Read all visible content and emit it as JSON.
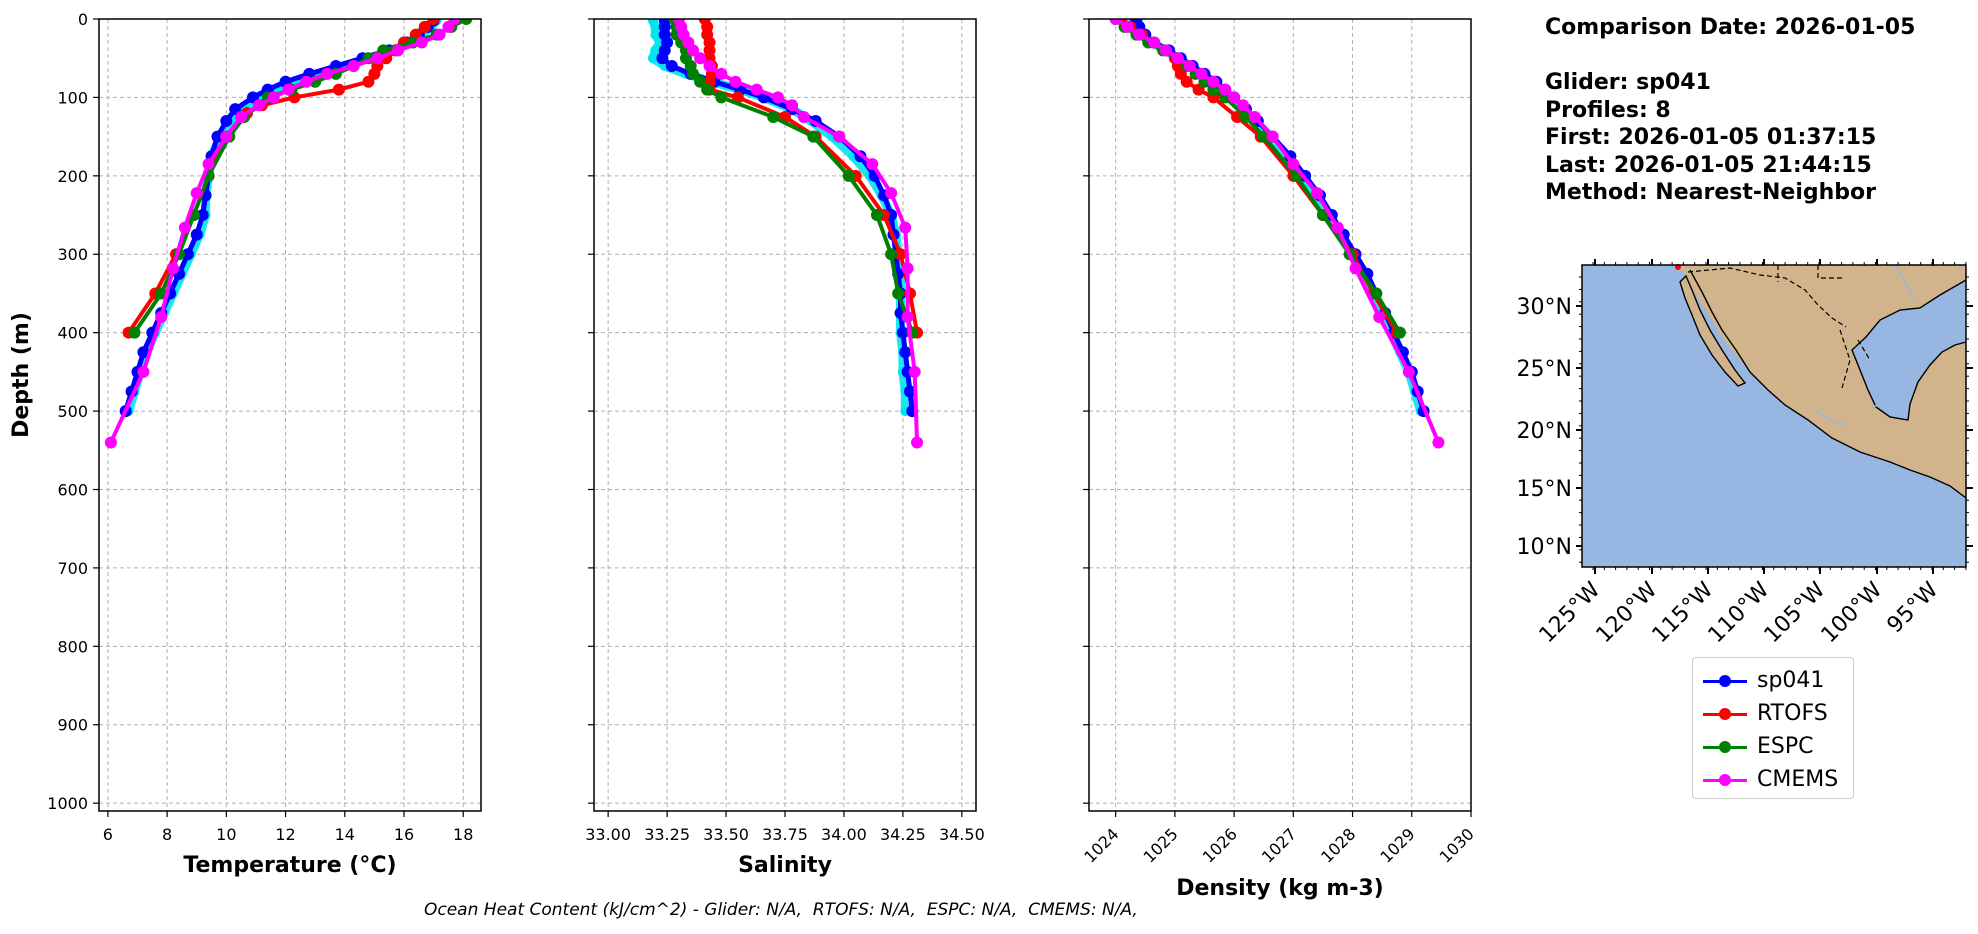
{
  "chart_data": [
    {
      "type": "line",
      "panel": "temperature",
      "xlabel": "Temperature (°C)",
      "ylabel": "Depth (m)",
      "xlim": [
        5.7,
        18.6
      ],
      "ylim": [
        1010,
        0
      ],
      "xticks": [
        6,
        8,
        10,
        12,
        14,
        16,
        18
      ],
      "yticks": [
        0,
        100,
        200,
        300,
        400,
        500,
        600,
        700,
        800,
        900,
        1000
      ],
      "grid": true,
      "series": [
        {
          "name": "sp041 (all)",
          "color": "#00e5ee",
          "depth": [
            2,
            10,
            20,
            30,
            40,
            50,
            60,
            70,
            80,
            90,
            100,
            115,
            130,
            150,
            175,
            200,
            225,
            250,
            275,
            300,
            325,
            350,
            375,
            400,
            425,
            450,
            475,
            500
          ],
          "values": [
            17.1,
            16.9,
            16.6,
            16.2,
            15.6,
            14.8,
            14.0,
            13.2,
            12.4,
            11.8,
            11.3,
            10.6,
            10.2,
            9.8,
            9.5,
            9.4,
            9.3,
            9.3,
            9.1,
            8.8,
            8.5,
            8.2,
            7.9,
            7.6,
            7.3,
            7.1,
            6.9,
            6.7
          ]
        },
        {
          "name": "sp041",
          "color": "#0000ff",
          "depth": [
            2,
            10,
            20,
            30,
            40,
            50,
            60,
            70,
            80,
            90,
            100,
            115,
            130,
            150,
            175,
            200,
            225,
            250,
            275,
            300,
            325,
            350,
            375,
            400,
            425,
            450,
            475,
            500
          ],
          "values": [
            17.0,
            16.8,
            16.5,
            16.1,
            15.5,
            14.6,
            13.7,
            12.8,
            12.0,
            11.4,
            10.9,
            10.3,
            10.0,
            9.7,
            9.5,
            9.4,
            9.3,
            9.2,
            9.0,
            8.7,
            8.4,
            8.1,
            7.8,
            7.5,
            7.2,
            7.0,
            6.8,
            6.6
          ]
        },
        {
          "name": "RTOFS",
          "color": "#ff0000",
          "depth": [
            0,
            10,
            20,
            30,
            40,
            50,
            60,
            70,
            80,
            90,
            100,
            110,
            120,
            150,
            200,
            250,
            300,
            350,
            400
          ],
          "values": [
            17.0,
            16.7,
            16.4,
            16.0,
            15.7,
            15.4,
            15.1,
            15.0,
            14.8,
            13.8,
            12.3,
            11.2,
            10.7,
            10.0,
            9.4,
            8.9,
            8.3,
            7.6,
            6.7
          ]
        },
        {
          "name": "ESPC",
          "color": "#008000",
          "depth": [
            0,
            10,
            20,
            30,
            40,
            50,
            60,
            70,
            80,
            90,
            100,
            125,
            150,
            200,
            250,
            300,
            350,
            400
          ],
          "values": [
            18.1,
            17.6,
            17.1,
            16.3,
            15.3,
            14.8,
            14.3,
            13.7,
            13.0,
            12.2,
            11.4,
            10.6,
            10.1,
            9.4,
            8.9,
            8.4,
            7.8,
            6.9
          ]
        },
        {
          "name": "CMEMS",
          "color": "#ff00ff",
          "depth": [
            0,
            10,
            20,
            30,
            40,
            50,
            60,
            70,
            80,
            90,
            100,
            110,
            125,
            150,
            185,
            222,
            266,
            318,
            380,
            450,
            540
          ],
          "values": [
            17.7,
            17.5,
            17.2,
            16.6,
            15.8,
            15.1,
            14.3,
            13.4,
            12.7,
            12.1,
            11.6,
            11.1,
            10.5,
            10.0,
            9.4,
            9.0,
            8.6,
            8.2,
            7.8,
            7.2,
            6.1
          ]
        }
      ]
    },
    {
      "type": "line",
      "panel": "salinity",
      "xlabel": "Salinity",
      "ylim": [
        1010,
        0
      ],
      "xlim": [
        32.94,
        34.56
      ],
      "xticks": [
        "33.00",
        "33.25",
        "33.50",
        "33.75",
        "34.00",
        "34.25",
        "34.50"
      ],
      "grid": true,
      "series": [
        {
          "name": "sp041 (all)",
          "color": "#00e5ee",
          "depth": [
            2,
            10,
            20,
            30,
            40,
            50,
            60,
            70,
            80,
            90,
            100,
            115,
            130,
            150,
            175,
            200,
            225,
            250,
            275,
            300,
            325,
            350,
            375,
            400,
            425,
            450,
            475,
            500
          ],
          "values": [
            33.19,
            33.2,
            33.2,
            33.22,
            33.2,
            33.19,
            33.24,
            33.33,
            33.44,
            33.56,
            33.66,
            33.78,
            33.86,
            33.95,
            34.04,
            34.11,
            34.16,
            34.2,
            34.22,
            34.23,
            34.24,
            34.24,
            34.24,
            34.24,
            34.25,
            34.25,
            34.26,
            34.26
          ]
        },
        {
          "name": "sp041",
          "color": "#0000ff",
          "depth": [
            2,
            10,
            20,
            30,
            40,
            50,
            60,
            70,
            80,
            90,
            100,
            115,
            130,
            150,
            175,
            200,
            225,
            250,
            275,
            300,
            325,
            350,
            375,
            400,
            425,
            450,
            475,
            500
          ],
          "values": [
            33.24,
            33.24,
            33.24,
            33.25,
            33.24,
            33.23,
            33.27,
            33.35,
            33.45,
            33.56,
            33.66,
            33.78,
            33.88,
            33.98,
            34.07,
            34.13,
            34.17,
            34.2,
            34.21,
            34.22,
            34.23,
            34.24,
            34.24,
            34.25,
            34.26,
            34.27,
            34.28,
            34.29
          ]
        },
        {
          "name": "RTOFS",
          "color": "#ff0000",
          "depth": [
            0,
            10,
            20,
            30,
            40,
            50,
            60,
            70,
            80,
            90,
            100,
            125,
            150,
            200,
            250,
            300,
            350,
            400
          ],
          "values": [
            33.41,
            33.42,
            33.42,
            33.43,
            33.43,
            33.43,
            33.44,
            33.44,
            33.43,
            33.43,
            33.55,
            33.75,
            33.88,
            34.05,
            34.17,
            34.24,
            34.28,
            34.31
          ]
        },
        {
          "name": "ESPC",
          "color": "#008000",
          "depth": [
            0,
            10,
            20,
            30,
            40,
            50,
            60,
            70,
            80,
            90,
            100,
            125,
            150,
            200,
            250,
            300,
            350,
            400
          ],
          "values": [
            33.28,
            33.29,
            33.29,
            33.31,
            33.33,
            33.33,
            33.35,
            33.36,
            33.39,
            33.42,
            33.48,
            33.7,
            33.87,
            34.02,
            34.14,
            34.2,
            34.23,
            34.29
          ]
        },
        {
          "name": "CMEMS",
          "color": "#ff00ff",
          "depth": [
            0,
            10,
            20,
            30,
            40,
            50,
            60,
            70,
            80,
            90,
            100,
            110,
            125,
            150,
            185,
            222,
            266,
            318,
            380,
            450,
            540
          ],
          "values": [
            33.3,
            33.31,
            33.32,
            33.34,
            33.36,
            33.39,
            33.43,
            33.48,
            33.54,
            33.63,
            33.72,
            33.78,
            33.83,
            33.98,
            34.12,
            34.2,
            34.26,
            34.27,
            34.27,
            34.3,
            34.31
          ]
        }
      ]
    },
    {
      "type": "line",
      "panel": "density",
      "xlabel": "Density (kg m-3)",
      "ylim": [
        1010,
        0
      ],
      "xlim": [
        1023.55,
        1030.0
      ],
      "xticks": [
        1024,
        1025,
        1026,
        1027,
        1028,
        1029,
        1030
      ],
      "grid": true,
      "series": [
        {
          "name": "sp041 (all)",
          "color": "#00e5ee",
          "depth": [
            2,
            10,
            20,
            30,
            40,
            50,
            60,
            70,
            80,
            90,
            100,
            115,
            130,
            150,
            175,
            200,
            225,
            250,
            275,
            300,
            325,
            350,
            375,
            400,
            425,
            450,
            475,
            500
          ],
          "values": [
            1024.3,
            1024.35,
            1024.45,
            1024.6,
            1024.85,
            1025.05,
            1025.25,
            1025.45,
            1025.65,
            1025.8,
            1025.95,
            1026.15,
            1026.35,
            1026.6,
            1026.9,
            1027.15,
            1027.4,
            1027.6,
            1027.8,
            1028.0,
            1028.2,
            1028.35,
            1028.5,
            1028.65,
            1028.8,
            1028.95,
            1029.05,
            1029.15
          ]
        },
        {
          "name": "sp041",
          "color": "#0000ff",
          "depth": [
            2,
            10,
            20,
            30,
            40,
            50,
            60,
            70,
            80,
            90,
            100,
            115,
            130,
            150,
            175,
            200,
            225,
            250,
            275,
            300,
            325,
            350,
            375,
            400,
            425,
            450,
            475,
            500
          ],
          "values": [
            1024.35,
            1024.4,
            1024.5,
            1024.65,
            1024.9,
            1025.1,
            1025.3,
            1025.5,
            1025.7,
            1025.85,
            1026.0,
            1026.2,
            1026.4,
            1026.65,
            1026.95,
            1027.2,
            1027.45,
            1027.65,
            1027.85,
            1028.05,
            1028.25,
            1028.4,
            1028.55,
            1028.7,
            1028.85,
            1029.0,
            1029.1,
            1029.2
          ]
        },
        {
          "name": "RTOFS",
          "color": "#ff0000",
          "depth": [
            0,
            10,
            20,
            30,
            40,
            50,
            60,
            70,
            80,
            90,
            100,
            125,
            150,
            200,
            250,
            300,
            350,
            400
          ],
          "values": [
            1024.1,
            1024.25,
            1024.45,
            1024.65,
            1024.85,
            1025.0,
            1025.05,
            1025.1,
            1025.2,
            1025.4,
            1025.65,
            1026.05,
            1026.45,
            1027.0,
            1027.5,
            1028.0,
            1028.35,
            1028.75
          ]
        },
        {
          "name": "ESPC",
          "color": "#008000",
          "depth": [
            0,
            10,
            20,
            30,
            40,
            50,
            60,
            70,
            80,
            90,
            100,
            125,
            150,
            200,
            250,
            300,
            350,
            400
          ],
          "values": [
            1024.0,
            1024.15,
            1024.35,
            1024.55,
            1024.8,
            1025.05,
            1025.2,
            1025.35,
            1025.5,
            1025.65,
            1025.85,
            1026.2,
            1026.5,
            1027.05,
            1027.5,
            1027.95,
            1028.4,
            1028.8
          ]
        },
        {
          "name": "CMEMS",
          "color": "#ff00ff",
          "depth": [
            0,
            10,
            20,
            30,
            40,
            50,
            60,
            70,
            80,
            90,
            100,
            110,
            125,
            150,
            185,
            222,
            266,
            318,
            380,
            450,
            540
          ],
          "values": [
            1024.0,
            1024.2,
            1024.4,
            1024.65,
            1024.85,
            1025.05,
            1025.25,
            1025.45,
            1025.65,
            1025.85,
            1026.0,
            1026.15,
            1026.35,
            1026.65,
            1027.0,
            1027.4,
            1027.75,
            1028.05,
            1028.45,
            1028.95,
            1029.45
          ]
        }
      ]
    }
  ],
  "info": {
    "comparison_date": "Comparison Date: 2026-01-05",
    "glider": "Glider: sp041",
    "profiles": "Profiles: 8",
    "first": "First: 2026-01-05 01:37:15",
    "last": "Last: 2026-01-05 21:44:15",
    "method": "Method: Nearest-Neighbor"
  },
  "map": {
    "lat_labels": [
      "30°N",
      "25°N",
      "20°N",
      "15°N",
      "10°N"
    ],
    "lon_labels": [
      "125°W",
      "120°W",
      "115°W",
      "110°W",
      "105°W",
      "100°W",
      "95°W"
    ],
    "ocean_color": "#97b6e1",
    "land_color": "#d2b48c"
  },
  "legend": [
    {
      "label": "sp041",
      "color": "#0000ff"
    },
    {
      "label": "RTOFS",
      "color": "#ff0000"
    },
    {
      "label": "ESPC",
      "color": "#008000"
    },
    {
      "label": "CMEMS",
      "color": "#ff00ff"
    }
  ],
  "footer": {
    "ohc": "Ocean Heat Content (kJ/cm^2) - Glider: N/A,  RTOFS: N/A,  ESPC: N/A,  CMEMS: N/A,"
  }
}
